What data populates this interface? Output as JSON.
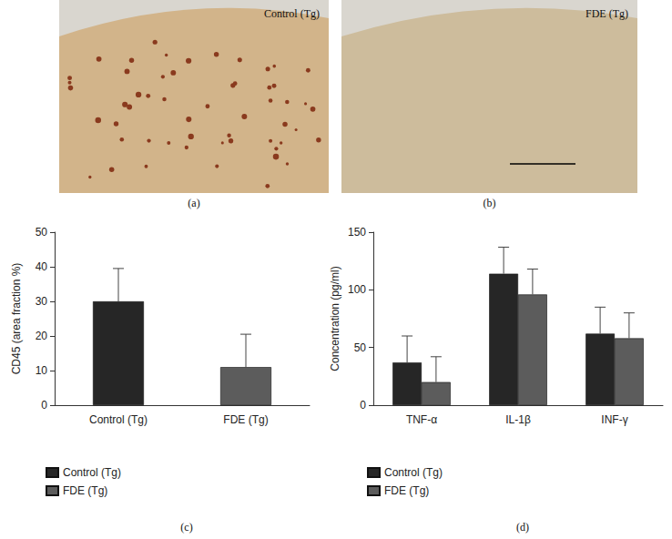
{
  "images": [
    {
      "label": "(a)",
      "caption": "Control (Tg)"
    },
    {
      "label": "(b)",
      "caption": "FDE (Tg)"
    }
  ],
  "chart_data": [
    {
      "type": "bar",
      "title": "(c)",
      "ylabel": "CD45 (area fraction %)",
      "categories": [
        "Control (Tg)",
        "FDE (Tg)"
      ],
      "series": [
        {
          "name": "Control (Tg)",
          "color": "#262626",
          "values": [
            30,
            null
          ],
          "errors": [
            9.5,
            null
          ]
        },
        {
          "name": "FDE (Tg)",
          "color": "#5c5c5c",
          "values": [
            null,
            11
          ],
          "errors": [
            null,
            9.5
          ]
        }
      ],
      "ylim": [
        0,
        50
      ],
      "yticks": [
        0,
        10,
        20,
        30,
        40,
        50
      ],
      "grid": false,
      "legend": "bottom-left"
    },
    {
      "type": "bar",
      "title": "(d)",
      "ylabel": "Concentration (pg/ml)",
      "categories": [
        "TNF-α",
        "IL-1β",
        "INF-γ"
      ],
      "series": [
        {
          "name": "Control (Tg)",
          "color": "#262626",
          "values": [
            37,
            114,
            62
          ],
          "errors": [
            23,
            23,
            23
          ]
        },
        {
          "name": "FDE (Tg)",
          "color": "#5c5c5c",
          "values": [
            20,
            96,
            58
          ],
          "errors": [
            22,
            22,
            22
          ]
        }
      ],
      "ylim": [
        0,
        150
      ],
      "yticks": [
        0,
        50,
        100,
        150
      ],
      "grid": false,
      "legend": "bottom-left"
    }
  ]
}
